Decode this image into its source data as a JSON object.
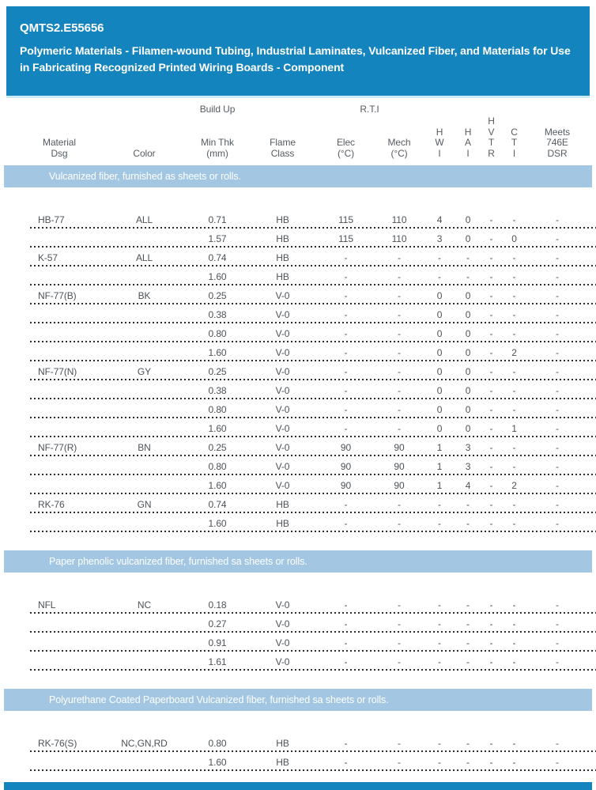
{
  "header": {
    "code": "QMTS2.E55656",
    "title": "Polymeric Materials - Filamen-wound Tubing, Industrial Laminates, Vulcanized Fiber, and Materials for Use in Fabricating Recognized Printed Wiring Boards - Component"
  },
  "columns": {
    "group_build_up": "Build Up",
    "group_rti": "R.T.I",
    "cells": [
      "Material\nDsg",
      "Color",
      "Min Thk\n(mm)",
      "Flame\nClass",
      "Elec\n(°C)",
      "Mech\n(°C)",
      "H\nW\nI",
      "H\nA\nI",
      "H\nV\nT\nR",
      "C\nT\nI",
      "Meets\n746E\nDSR"
    ]
  },
  "sections": [
    {
      "band": "Vulcanized fiber, furnished as sheets or rolls.",
      "rows": [
        [
          "HB-77",
          "ALL",
          "0.71",
          "HB",
          "115",
          "110",
          "4",
          "0",
          "-",
          "-",
          "-"
        ],
        [
          "",
          "",
          "1.57",
          "HB",
          "115",
          "110",
          "3",
          "0",
          "-",
          "0",
          "-"
        ],
        [
          "K-57",
          "ALL",
          "0.74",
          "HB",
          "-",
          "-",
          "-",
          "-",
          "-",
          "-",
          "-"
        ],
        [
          "",
          "",
          "1.60",
          "HB",
          "-",
          "-",
          "-",
          "-",
          "-",
          "-",
          "-"
        ],
        [
          "NF-77(B)",
          "BK",
          "0.25",
          "V-0",
          "-",
          "-",
          "0",
          "0",
          "-",
          "-",
          "-"
        ],
        [
          "",
          "",
          "0.38",
          "V-0",
          "-",
          "-",
          "0",
          "0",
          "-",
          "-",
          "-"
        ],
        [
          "",
          "",
          "0.80",
          "V-0",
          "-",
          "-",
          "0",
          "0",
          "-",
          "-",
          "-"
        ],
        [
          "",
          "",
          "1.60",
          "V-0",
          "-",
          "-",
          "0",
          "0",
          "-",
          "2",
          "-"
        ],
        [
          "NF-77(N)",
          "GY",
          "0.25",
          "V-0",
          "-",
          "-",
          "0",
          "0",
          "-",
          "-",
          "-"
        ],
        [
          "",
          "",
          "0.38",
          "V-0",
          "-",
          "-",
          "0",
          "0",
          "-",
          "-",
          "-"
        ],
        [
          "",
          "",
          "0.80",
          "V-0",
          "-",
          "-",
          "0",
          "0",
          "-",
          "-",
          "-"
        ],
        [
          "",
          "",
          "1.60",
          "V-0",
          "-",
          "-",
          "0",
          "0",
          "-",
          "1",
          "-"
        ],
        [
          "NF-77(R)",
          "BN",
          "0.25",
          "V-0",
          "90",
          "90",
          "1",
          "3",
          "-",
          "-",
          "-"
        ],
        [
          "",
          "",
          "0.80",
          "V-0",
          "90",
          "90",
          "1",
          "3",
          "-",
          "-",
          "-"
        ],
        [
          "",
          "",
          "1.60",
          "V-0",
          "90",
          "90",
          "1",
          "4",
          "-",
          "2",
          "-"
        ],
        [
          "RK-76",
          "GN",
          "0.74",
          "HB",
          "-",
          "-",
          "-",
          "-",
          "-",
          "-",
          "-"
        ],
        [
          "",
          "",
          "1.60",
          "HB",
          "-",
          "-",
          "-",
          "-",
          "-",
          "-",
          "-"
        ]
      ]
    },
    {
      "band": "Paper phenolic vulcanized fiber, furnished sa sheets or rolls.",
      "rows": [
        [
          "NFL",
          "NC",
          "0.18",
          "V-0",
          "-",
          "-",
          "-",
          "-",
          "-",
          "-",
          "-"
        ],
        [
          "",
          "",
          "0.27",
          "V-0",
          "-",
          "-",
          "-",
          "-",
          "-",
          "-",
          "-"
        ],
        [
          "",
          "",
          "0.91",
          "V-0",
          "-",
          "-",
          "-",
          "-",
          "-",
          "-",
          "-"
        ],
        [
          "",
          "",
          "1.61",
          "V-0",
          "-",
          "-",
          "-",
          "-",
          "-",
          "-",
          "-"
        ]
      ]
    },
    {
      "band": "Polyurethane Coated Paperboard Vulcanized fiber, furnished sa sheets or rolls.",
      "rows": [
        [
          "RK-76(S)",
          "NC,GN,RD",
          "0.80",
          "HB",
          "-",
          "-",
          "-",
          "-",
          "-",
          "-",
          "-"
        ],
        [
          "",
          "",
          "1.60",
          "HB",
          "-",
          "-",
          "-",
          "-",
          "-",
          "-",
          "-"
        ]
      ]
    }
  ],
  "colors": {
    "header_bg": "#1484bf",
    "header_bottom_edge": "#cdeaf7",
    "band_bg": "#a3c7e2",
    "table_text": "#4d5358",
    "dotted_separator": "#2c2c2c",
    "text_on_blue": "#ffffff"
  }
}
